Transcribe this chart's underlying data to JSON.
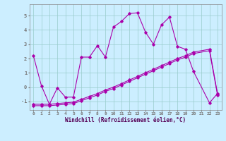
{
  "xlabel": "Windchill (Refroidissement éolien,°C)",
  "background_color": "#cceeff",
  "line_color": "#aa00aa",
  "grid_color": "#99cccc",
  "xlim": [
    -0.5,
    23.5
  ],
  "ylim": [
    -1.6,
    5.8
  ],
  "xticks": [
    0,
    1,
    2,
    3,
    4,
    5,
    6,
    7,
    8,
    9,
    10,
    11,
    12,
    13,
    14,
    15,
    16,
    17,
    18,
    19,
    20,
    21,
    22,
    23
  ],
  "yticks": [
    -1,
    0,
    1,
    2,
    3,
    4,
    5
  ],
  "line1_x": [
    0,
    1,
    2,
    3,
    4,
    5,
    6,
    7,
    8,
    9,
    10,
    11,
    12,
    13,
    14,
    15,
    16,
    17,
    18,
    19,
    20,
    22,
    23
  ],
  "line1_y": [
    2.2,
    0.1,
    -1.2,
    -0.05,
    -0.7,
    -0.7,
    2.1,
    2.1,
    2.9,
    2.1,
    4.2,
    4.6,
    5.15,
    5.2,
    3.85,
    3.0,
    4.35,
    4.9,
    2.85,
    2.65,
    1.1,
    -1.1,
    -0.45
  ],
  "line2_x": [
    0,
    1,
    2,
    3,
    4,
    5,
    6,
    7,
    8,
    9,
    10,
    11,
    12,
    13,
    14,
    15,
    16,
    17,
    18,
    19,
    20,
    22,
    23
  ],
  "line2_y": [
    -1.2,
    -1.2,
    -1.2,
    -1.15,
    -1.1,
    -1.05,
    -0.85,
    -0.65,
    -0.45,
    -0.2,
    0.0,
    0.25,
    0.5,
    0.75,
    1.0,
    1.25,
    1.5,
    1.75,
    2.0,
    2.2,
    2.45,
    2.65,
    -0.45
  ],
  "line3_x": [
    0,
    1,
    2,
    3,
    4,
    5,
    6,
    7,
    8,
    9,
    10,
    11,
    12,
    13,
    14,
    15,
    16,
    17,
    18,
    19,
    20,
    22,
    23
  ],
  "line3_y": [
    -1.3,
    -1.3,
    -1.3,
    -1.25,
    -1.2,
    -1.15,
    -0.95,
    -0.75,
    -0.55,
    -0.3,
    -0.1,
    0.15,
    0.4,
    0.65,
    0.9,
    1.15,
    1.4,
    1.65,
    1.9,
    2.1,
    2.35,
    2.55,
    -0.55
  ]
}
